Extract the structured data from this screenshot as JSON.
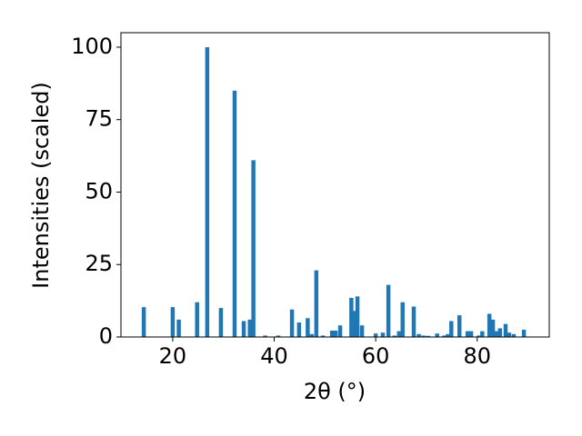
{
  "chart_data": {
    "type": "bar",
    "xlabel": "2θ (°)",
    "ylabel": "Intensities (scaled)",
    "color": "#1f77b4",
    "x": [
      14.3,
      20.0,
      21.2,
      24.8,
      26.8,
      29.5,
      32.2,
      34.0,
      35.2,
      35.9,
      38.2,
      40.8,
      43.5,
      44.9,
      46.6,
      47.4,
      48.3,
      49.6,
      51.4,
      52.1,
      53.0,
      55.2,
      55.7,
      56.4,
      57.3,
      60.0,
      61.4,
      62.5,
      63.7,
      64.6,
      65.3,
      67.5,
      68.5,
      69.4,
      70.3,
      72.1,
      73.5,
      74.2,
      74.9,
      76.5,
      78.1,
      78.8,
      80.3,
      81.0,
      82.4,
      83.1,
      83.8,
      84.5,
      85.6,
      86.3,
      87.2,
      89.2
    ],
    "values": [
      10.3,
      10.3,
      6,
      12,
      100,
      10,
      85,
      5.5,
      6,
      61,
      0.5,
      0.5,
      9.5,
      5,
      6.5,
      1,
      23,
      0.5,
      2.2,
      2.2,
      4,
      13.5,
      9,
      14,
      4,
      1.2,
      1.5,
      18,
      0.5,
      2,
      12,
      10.5,
      1,
      0.5,
      0.4,
      1.2,
      0.5,
      1,
      5.5,
      7.5,
      2,
      2,
      0.5,
      2,
      8,
      6,
      2,
      3,
      4.5,
      1.5,
      1,
      2.5
    ],
    "xlim": [
      9.8,
      94.2
    ],
    "xticks": [
      20,
      40,
      60,
      80
    ],
    "ylim": [
      0,
      105
    ],
    "yticks": [
      0,
      25,
      50,
      75,
      100
    ]
  }
}
